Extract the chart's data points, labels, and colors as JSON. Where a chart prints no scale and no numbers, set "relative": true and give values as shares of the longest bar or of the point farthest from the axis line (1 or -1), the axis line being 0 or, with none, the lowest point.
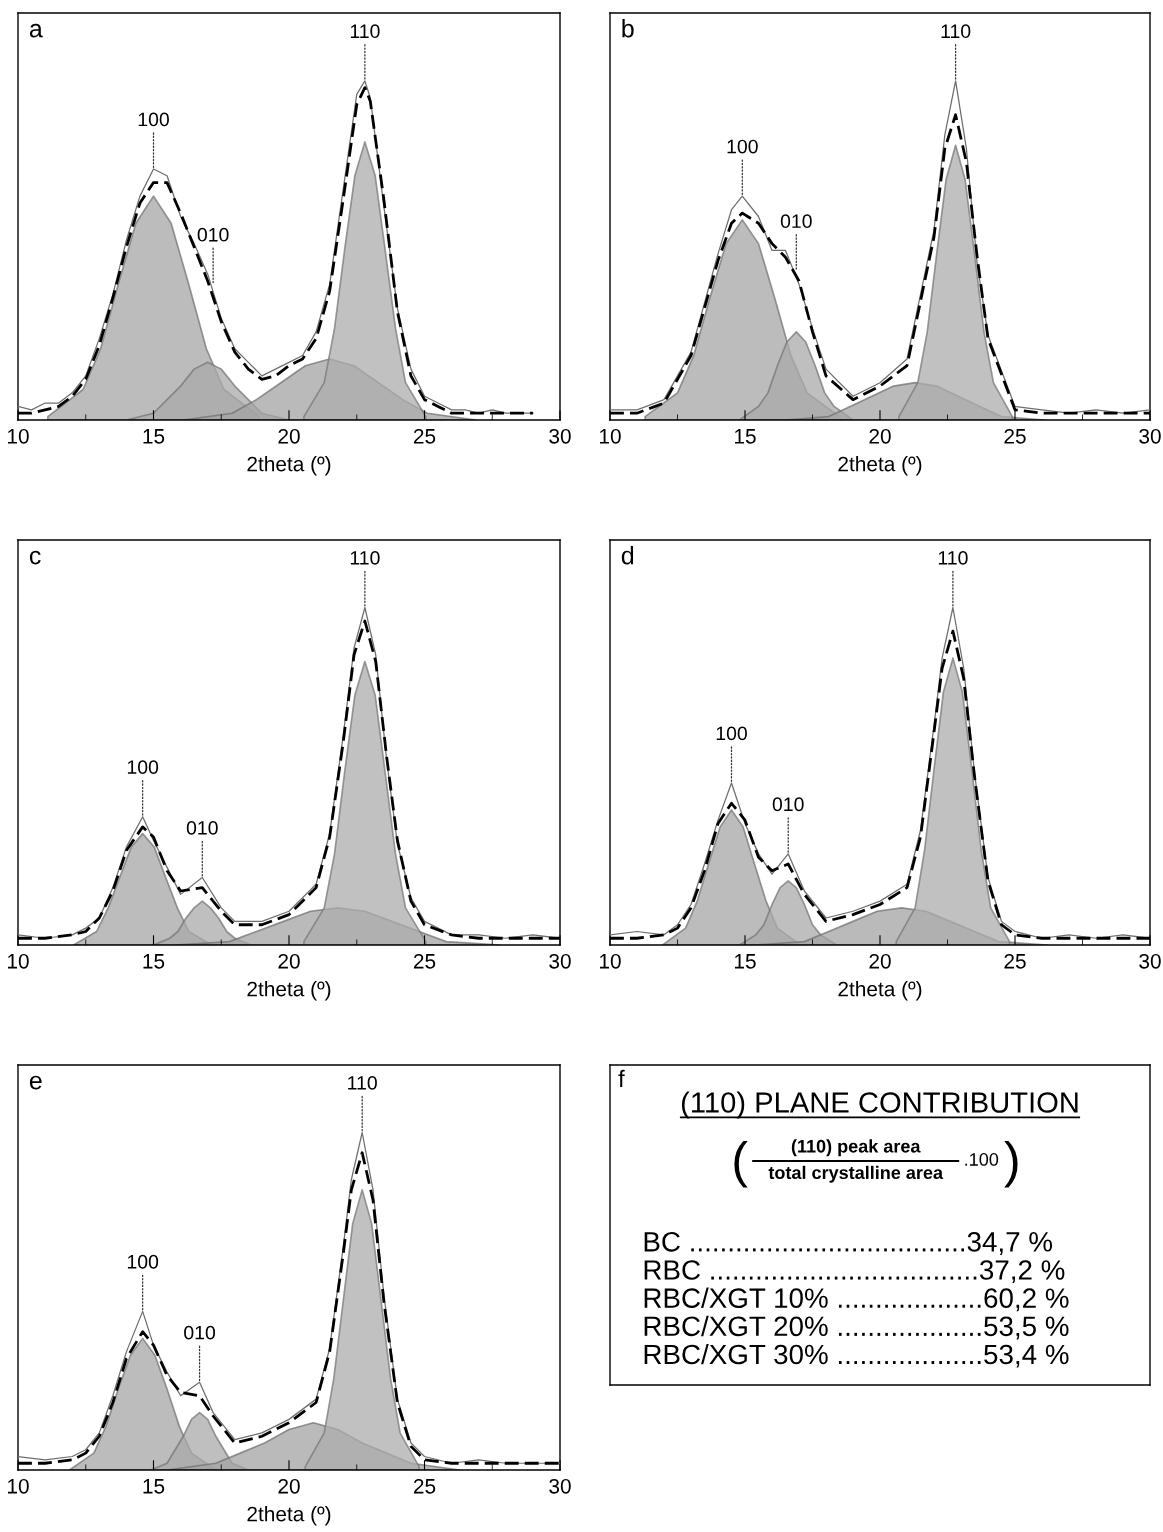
{
  "chart_data": [
    {
      "type": "line",
      "title": "a",
      "xlabel": "2theta (º)",
      "xlim": [
        10,
        30
      ],
      "xticks": [
        10,
        {
          "value": 12.5,
          "label": null
        },
        15,
        {
          "value": 17.5,
          "label": null
        },
        20,
        {
          "value": 22.5,
          "label": null
        },
        25,
        {
          "value": 27.5,
          "label": null
        },
        30
      ],
      "relative": true,
      "series": [
        {
          "type": "area",
          "color": "#a6a6a6",
          "x": [
            11.1,
            12.4,
            13.05,
            13.7,
            14.35,
            15,
            15.65,
            16.3,
            16.95,
            17.6,
            18.9
          ],
          "values": [
            0.01,
            0.09,
            0.21,
            0.4,
            0.58,
            0.66,
            0.58,
            0.4,
            0.21,
            0.09,
            0.01
          ]
        },
        {
          "type": "area",
          "color": "#a9a9a9",
          "x": [
            14,
            15,
            15.5,
            16,
            16.5,
            17,
            17.5,
            18,
            18.5,
            19,
            20
          ],
          "values": [
            0.0,
            0.02,
            0.06,
            0.1,
            0.15,
            0.17,
            0.15,
            0.1,
            0.06,
            0.02,
            0.0
          ]
        },
        {
          "type": "area",
          "color": "#a3a3a3",
          "x": [
            16.1,
            17.9,
            18.8,
            19.7,
            20.6,
            21.5,
            22.4,
            23.3,
            24.2,
            25.1,
            26.9
          ],
          "values": [
            0.0,
            0.02,
            0.06,
            0.11,
            0.16,
            0.18,
            0.16,
            0.11,
            0.06,
            0.02,
            0.0
          ]
        },
        {
          "type": "area",
          "color": "#acacac",
          "x": [
            20.55,
            21.3,
            21.68,
            22.05,
            22.43,
            22.8,
            23.18,
            23.55,
            23.93,
            24.3,
            25.05
          ],
          "values": [
            0.01,
            0.11,
            0.27,
            0.5,
            0.72,
            0.82,
            0.72,
            0.5,
            0.27,
            0.11,
            0.01
          ]
        },
        {
          "type": "line",
          "color": "#6e6e6e",
          "line_style": "solid",
          "x": [
            10,
            10.5,
            11,
            11.5,
            12,
            12.5,
            13,
            13.5,
            14,
            14.5,
            15,
            15.5,
            16,
            16.5,
            17,
            17.5,
            18,
            18.5,
            19,
            19.5,
            20,
            20.5,
            21,
            21.5,
            22,
            22.5,
            22.8,
            23,
            23.5,
            24,
            24.5,
            25,
            25.5,
            26,
            26.5,
            27,
            27.5,
            28,
            28.5,
            29
          ],
          "values": [
            0.04,
            0.03,
            0.05,
            0.05,
            0.08,
            0.13,
            0.24,
            0.37,
            0.53,
            0.66,
            0.74,
            0.72,
            0.6,
            0.52,
            0.43,
            0.3,
            0.21,
            0.17,
            0.13,
            0.15,
            0.17,
            0.19,
            0.26,
            0.4,
            0.68,
            0.96,
            1.0,
            0.95,
            0.63,
            0.33,
            0.15,
            0.07,
            0.05,
            0.03,
            0.03,
            0.02,
            0.03,
            0.02,
            0.02,
            0.02
          ]
        },
        {
          "type": "line",
          "color": "#000000",
          "line_style": "dashed",
          "x": [
            10,
            10.5,
            11,
            11.5,
            12,
            12.5,
            13,
            13.5,
            14,
            14.5,
            15,
            15.5,
            16,
            16.5,
            17,
            17.5,
            18,
            18.5,
            19,
            19.5,
            20,
            20.5,
            21,
            21.5,
            22,
            22.5,
            22.8,
            23,
            23.5,
            24,
            24.5,
            25,
            25.5,
            26,
            26.5,
            27,
            27.5,
            28,
            28.5,
            29
          ],
          "values": [
            0.02,
            0.02,
            0.03,
            0.04,
            0.07,
            0.12,
            0.22,
            0.36,
            0.51,
            0.64,
            0.7,
            0.7,
            0.61,
            0.51,
            0.41,
            0.29,
            0.2,
            0.15,
            0.12,
            0.13,
            0.16,
            0.18,
            0.24,
            0.38,
            0.65,
            0.93,
            0.98,
            0.94,
            0.65,
            0.32,
            0.13,
            0.06,
            0.04,
            0.02,
            0.02,
            0.02,
            0.02,
            0.02,
            0.02,
            0.02
          ]
        }
      ],
      "annotations": [
        {
          "text": "100",
          "x": 15,
          "y": 0.74
        },
        {
          "text": "010",
          "x": 17.2,
          "y": 0.4
        },
        {
          "text": "110",
          "x": 22.8,
          "y": 1.0
        }
      ]
    },
    {
      "type": "line",
      "title": "b",
      "xlabel": "2theta (º)",
      "xlim": [
        10,
        30
      ],
      "xticks": [
        10,
        {
          "value": 12.5,
          "label": null
        },
        15,
        {
          "value": 17.5,
          "label": null
        },
        20,
        {
          "value": 22.5,
          "label": null
        },
        25,
        {
          "value": 27.5,
          "label": null
        },
        30
      ],
      "relative": true,
      "series": [
        {
          "type": "area",
          "color": "#a6a6a6",
          "x": [
            11.3,
            12.5,
            13.1,
            13.7,
            14.3,
            14.9,
            15.5,
            16.1,
            16.7,
            17.3,
            18.5
          ],
          "values": [
            0.01,
            0.08,
            0.19,
            0.36,
            0.52,
            0.59,
            0.52,
            0.36,
            0.19,
            0.08,
            0.01
          ]
        },
        {
          "type": "area",
          "color": "#a9a9a9",
          "x": [
            14.8,
            15.5,
            15.85,
            16.2,
            16.55,
            16.9,
            17.25,
            17.6,
            17.95,
            18.3,
            19.0
          ],
          "values": [
            0.0,
            0.04,
            0.08,
            0.16,
            0.23,
            0.26,
            0.23,
            0.16,
            0.08,
            0.04,
            0.0
          ]
        },
        {
          "type": "area",
          "color": "#a3a3a3",
          "x": [
            16.5,
            18.1,
            18.9,
            19.7,
            20.5,
            21.3,
            22.1,
            22.9,
            23.7,
            24.5,
            26.1
          ],
          "values": [
            0.0,
            0.01,
            0.04,
            0.07,
            0.1,
            0.11,
            0.1,
            0.07,
            0.04,
            0.01,
            0.0
          ]
        },
        {
          "type": "area",
          "color": "#acacac",
          "x": [
            20.7,
            21.4,
            21.75,
            22.1,
            22.45,
            22.8,
            23.15,
            23.5,
            23.85,
            24.2,
            24.9
          ],
          "values": [
            0.01,
            0.11,
            0.26,
            0.49,
            0.71,
            0.81,
            0.71,
            0.49,
            0.26,
            0.11,
            0.01
          ]
        },
        {
          "type": "line",
          "color": "#6e6e6e",
          "line_style": "solid",
          "x": [
            10,
            11,
            12,
            13,
            14,
            14.5,
            14.9,
            15.5,
            16,
            16.5,
            17,
            17.5,
            18,
            19,
            20,
            21,
            22,
            22.4,
            22.8,
            23.2,
            23.6,
            24,
            25,
            26,
            27,
            28,
            29,
            30
          ],
          "values": [
            0.03,
            0.03,
            0.06,
            0.2,
            0.49,
            0.62,
            0.66,
            0.6,
            0.5,
            0.5,
            0.4,
            0.27,
            0.15,
            0.07,
            0.11,
            0.18,
            0.56,
            0.84,
            1.0,
            0.8,
            0.46,
            0.25,
            0.04,
            0.03,
            0.02,
            0.03,
            0.02,
            0.03
          ]
        },
        {
          "type": "line",
          "color": "#000000",
          "line_style": "dashed",
          "x": [
            10,
            11,
            12,
            13,
            14,
            14.5,
            14.9,
            15.5,
            16,
            16.5,
            17,
            17.5,
            18,
            19,
            20,
            21,
            22,
            22.4,
            22.8,
            23.2,
            23.6,
            24,
            25,
            26,
            27,
            28,
            29,
            30
          ],
          "values": [
            0.02,
            0.02,
            0.05,
            0.19,
            0.47,
            0.58,
            0.61,
            0.58,
            0.52,
            0.48,
            0.41,
            0.26,
            0.13,
            0.06,
            0.1,
            0.16,
            0.54,
            0.8,
            0.9,
            0.76,
            0.48,
            0.24,
            0.03,
            0.02,
            0.02,
            0.02,
            0.02,
            0.02
          ]
        }
      ],
      "annotations": [
        {
          "text": "100",
          "x": 14.9,
          "y": 0.66
        },
        {
          "text": "010",
          "x": 16.9,
          "y": 0.44
        },
        {
          "text": "110",
          "x": 22.8,
          "y": 1.0
        }
      ]
    },
    {
      "type": "line",
      "title": "c",
      "xlabel": "2theta (º)",
      "xlim": [
        10,
        30
      ],
      "xticks": [
        10,
        {
          "value": 12.5,
          "label": null
        },
        15,
        {
          "value": 17.5,
          "label": null
        },
        20,
        {
          "value": 22.5,
          "label": null
        },
        25,
        {
          "value": 27.5,
          "label": null
        },
        30
      ],
      "relative": true,
      "series": [
        {
          "type": "area",
          "color": "#a6a6a6",
          "x": [
            12.05,
            12.9,
            13.33,
            13.75,
            14.18,
            14.6,
            15.03,
            15.45,
            15.88,
            16.3,
            17.15
          ],
          "values": [
            0.0,
            0.04,
            0.11,
            0.2,
            0.29,
            0.33,
            0.29,
            0.2,
            0.11,
            0.04,
            0.0
          ]
        },
        {
          "type": "area",
          "color": "#a9a9a9",
          "x": [
            15.0,
            15.6,
            15.9,
            16.2,
            16.5,
            16.8,
            17.1,
            17.4,
            17.7,
            18.0,
            18.6
          ],
          "values": [
            0.0,
            0.02,
            0.04,
            0.08,
            0.11,
            0.13,
            0.11,
            0.08,
            0.04,
            0.02,
            0.0
          ]
        },
        {
          "type": "area",
          "color": "#a3a3a3",
          "x": [
            15.8,
            17.8,
            18.8,
            19.8,
            20.8,
            21.8,
            22.8,
            23.8,
            24.8,
            25.8,
            27.8
          ],
          "values": [
            0.0,
            0.01,
            0.04,
            0.07,
            0.1,
            0.11,
            0.1,
            0.07,
            0.04,
            0.01,
            0.0
          ]
        },
        {
          "type": "area",
          "color": "#acacac",
          "x": [
            20.55,
            21.3,
            21.68,
            22.05,
            22.43,
            22.8,
            23.18,
            23.55,
            23.93,
            24.3,
            25.05
          ],
          "values": [
            0.01,
            0.11,
            0.27,
            0.51,
            0.74,
            0.84,
            0.74,
            0.51,
            0.27,
            0.11,
            0.01
          ]
        },
        {
          "type": "line",
          "color": "#6e6e6e",
          "line_style": "solid",
          "x": [
            10,
            11,
            12,
            12.5,
            13,
            13.5,
            14,
            14.6,
            15,
            15.5,
            16,
            16.8,
            17.5,
            18,
            19,
            20,
            21,
            21.5,
            22,
            22.4,
            22.8,
            23.2,
            23.6,
            24,
            24.5,
            25,
            26,
            27,
            28,
            29,
            30
          ],
          "values": [
            0.03,
            0.02,
            0.03,
            0.05,
            0.08,
            0.17,
            0.29,
            0.38,
            0.31,
            0.23,
            0.15,
            0.2,
            0.11,
            0.07,
            0.07,
            0.1,
            0.18,
            0.33,
            0.62,
            0.88,
            1.0,
            0.86,
            0.55,
            0.3,
            0.14,
            0.07,
            0.03,
            0.03,
            0.02,
            0.03,
            0.02
          ]
        },
        {
          "type": "line",
          "color": "#000000",
          "line_style": "dashed",
          "x": [
            10,
            11,
            12,
            12.5,
            13,
            13.5,
            14,
            14.6,
            15,
            15.5,
            16,
            16.8,
            17.5,
            18,
            19,
            20,
            21,
            21.5,
            22,
            22.4,
            22.8,
            23.2,
            23.6,
            24,
            24.5,
            25,
            26,
            27,
            28,
            29,
            30
          ],
          "values": [
            0.02,
            0.02,
            0.03,
            0.04,
            0.08,
            0.16,
            0.28,
            0.35,
            0.32,
            0.22,
            0.16,
            0.17,
            0.1,
            0.06,
            0.06,
            0.09,
            0.17,
            0.32,
            0.6,
            0.86,
            0.96,
            0.84,
            0.56,
            0.31,
            0.13,
            0.06,
            0.03,
            0.02,
            0.02,
            0.02,
            0.02
          ]
        }
      ],
      "annotations": [
        {
          "text": "100",
          "x": 14.6,
          "y": 0.38
        },
        {
          "text": "010",
          "x": 16.8,
          "y": 0.2
        },
        {
          "text": "110",
          "x": 22.8,
          "y": 1.0
        }
      ]
    },
    {
      "type": "line",
      "title": "d",
      "xlabel": "2theta (º)",
      "xlim": [
        10,
        30
      ],
      "xticks": [
        10,
        {
          "value": 12.5,
          "label": null
        },
        15,
        {
          "value": 17.5,
          "label": null
        },
        20,
        {
          "value": 22.5,
          "label": null
        },
        25,
        {
          "value": 27.5,
          "label": null
        },
        30
      ],
      "relative": true,
      "series": [
        {
          "type": "area",
          "color": "#a6a6a6",
          "x": [
            11.95,
            12.8,
            13.23,
            13.65,
            14.08,
            14.5,
            14.93,
            15.35,
            15.78,
            16.2,
            17.05
          ],
          "values": [
            0.0,
            0.05,
            0.13,
            0.24,
            0.35,
            0.4,
            0.35,
            0.24,
            0.13,
            0.05,
            0.0
          ]
        },
        {
          "type": "area",
          "color": "#a9a9a9",
          "x": [
            14.8,
            15.4,
            15.7,
            16.0,
            16.3,
            16.6,
            16.9,
            17.2,
            17.5,
            17.8,
            18.4
          ],
          "values": [
            0.0,
            0.03,
            0.06,
            0.12,
            0.17,
            0.19,
            0.17,
            0.12,
            0.06,
            0.03,
            0.0
          ]
        },
        {
          "type": "area",
          "color": "#a3a3a3",
          "x": [
            15.4,
            17.2,
            18.1,
            19.0,
            19.9,
            20.8,
            21.7,
            22.6,
            23.5,
            24.4,
            26.2
          ],
          "values": [
            0.0,
            0.01,
            0.04,
            0.07,
            0.1,
            0.11,
            0.1,
            0.07,
            0.04,
            0.01,
            0.0
          ]
        },
        {
          "type": "area",
          "color": "#acacac",
          "x": [
            20.6,
            21.3,
            21.65,
            22.0,
            22.35,
            22.7,
            23.05,
            23.4,
            23.75,
            24.1,
            24.8
          ],
          "values": [
            0.01,
            0.11,
            0.28,
            0.52,
            0.75,
            0.85,
            0.75,
            0.52,
            0.28,
            0.11,
            0.01
          ]
        },
        {
          "type": "line",
          "color": "#6e6e6e",
          "line_style": "solid",
          "x": [
            10,
            11,
            12,
            12.5,
            13,
            13.5,
            14,
            14.5,
            15,
            15.5,
            16,
            16.6,
            17.2,
            18,
            19,
            20,
            21,
            21.5,
            22,
            22.3,
            22.7,
            23.1,
            23.5,
            24,
            24.5,
            25,
            26,
            27,
            28,
            29,
            30
          ],
          "values": [
            0.03,
            0.04,
            0.03,
            0.06,
            0.12,
            0.24,
            0.37,
            0.48,
            0.36,
            0.27,
            0.21,
            0.27,
            0.16,
            0.08,
            0.1,
            0.13,
            0.18,
            0.34,
            0.65,
            0.85,
            1.0,
            0.82,
            0.51,
            0.2,
            0.07,
            0.04,
            0.02,
            0.03,
            0.02,
            0.03,
            0.02
          ]
        },
        {
          "type": "line",
          "color": "#000000",
          "line_style": "dashed",
          "x": [
            10,
            11,
            12,
            12.5,
            13,
            13.5,
            14,
            14.5,
            15,
            15.5,
            16,
            16.6,
            17.2,
            18,
            19,
            20,
            21,
            21.5,
            22,
            22.3,
            22.7,
            23.1,
            23.5,
            24,
            24.5,
            25,
            26,
            27,
            28,
            29,
            30
          ],
          "values": [
            0.02,
            0.02,
            0.03,
            0.05,
            0.11,
            0.22,
            0.36,
            0.42,
            0.37,
            0.26,
            0.22,
            0.24,
            0.15,
            0.07,
            0.09,
            0.12,
            0.17,
            0.32,
            0.63,
            0.82,
            0.93,
            0.79,
            0.5,
            0.19,
            0.06,
            0.03,
            0.02,
            0.02,
            0.02,
            0.02,
            0.02
          ]
        }
      ],
      "annotations": [
        {
          "text": "100",
          "x": 14.5,
          "y": 0.48
        },
        {
          "text": "010",
          "x": 16.6,
          "y": 0.27
        },
        {
          "text": "110",
          "x": 22.7,
          "y": 1.0
        }
      ]
    },
    {
      "type": "line",
      "title": "e",
      "xlabel": "2theta (º)",
      "xlim": [
        10,
        30
      ],
      "xticks": [
        10,
        {
          "value": 12.5,
          "label": null
        },
        15,
        {
          "value": 17.5,
          "label": null
        },
        20,
        {
          "value": 22.5,
          "label": null
        },
        25,
        {
          "value": 27.5,
          "label": null
        },
        30
      ],
      "relative": true,
      "series": [
        {
          "type": "area",
          "color": "#a6a6a6",
          "x": [
            11.9,
            12.8,
            13.25,
            13.7,
            14.15,
            14.6,
            15.05,
            15.5,
            15.95,
            16.4,
            17.3
          ],
          "values": [
            0.0,
            0.05,
            0.13,
            0.24,
            0.34,
            0.39,
            0.34,
            0.24,
            0.13,
            0.05,
            0.0
          ]
        },
        {
          "type": "area",
          "color": "#a9a9a9",
          "x": [
            14.9,
            15.5,
            15.8,
            16.1,
            16.4,
            16.7,
            17.0,
            17.3,
            17.6,
            17.9,
            18.5
          ],
          "values": [
            0.0,
            0.02,
            0.06,
            0.1,
            0.15,
            0.17,
            0.15,
            0.1,
            0.06,
            0.02,
            0.0
          ]
        },
        {
          "type": "area",
          "color": "#a3a3a3",
          "x": [
            15.5,
            17.3,
            18.2,
            19.1,
            20.0,
            20.9,
            21.8,
            22.7,
            23.6,
            24.5,
            26.3
          ],
          "values": [
            0.0,
            0.02,
            0.05,
            0.08,
            0.12,
            0.14,
            0.12,
            0.08,
            0.05,
            0.02,
            0.0
          ]
        },
        {
          "type": "area",
          "color": "#acacac",
          "x": [
            20.6,
            21.3,
            21.65,
            22.0,
            22.35,
            22.7,
            23.05,
            23.4,
            23.75,
            24.1,
            24.8
          ],
          "values": [
            0.01,
            0.11,
            0.27,
            0.5,
            0.73,
            0.83,
            0.73,
            0.5,
            0.27,
            0.11,
            0.01
          ]
        },
        {
          "type": "line",
          "color": "#6e6e6e",
          "line_style": "solid",
          "x": [
            10,
            11,
            12,
            12.5,
            13,
            13.5,
            14,
            14.6,
            15,
            15.5,
            16,
            16.7,
            17.2,
            18,
            19,
            20,
            21,
            21.5,
            22,
            22.3,
            22.7,
            23.1,
            23.5,
            24,
            24.5,
            25,
            26,
            27,
            28,
            29,
            30
          ],
          "values": [
            0.04,
            0.03,
            0.04,
            0.06,
            0.11,
            0.22,
            0.35,
            0.47,
            0.37,
            0.29,
            0.22,
            0.26,
            0.17,
            0.09,
            0.11,
            0.15,
            0.21,
            0.36,
            0.66,
            0.86,
            1.0,
            0.83,
            0.52,
            0.21,
            0.08,
            0.04,
            0.02,
            0.03,
            0.02,
            0.02,
            0.02
          ]
        },
        {
          "type": "line",
          "color": "#000000",
          "line_style": "dashed",
          "x": [
            10,
            11,
            12,
            12.5,
            13,
            13.5,
            14,
            14.6,
            15,
            15.5,
            16,
            16.7,
            17.2,
            18,
            19,
            20,
            21,
            21.5,
            22,
            22.3,
            22.7,
            23.1,
            23.5,
            24,
            24.5,
            25,
            26,
            27,
            28,
            29,
            30
          ],
          "values": [
            0.02,
            0.02,
            0.03,
            0.05,
            0.1,
            0.2,
            0.33,
            0.41,
            0.37,
            0.28,
            0.23,
            0.22,
            0.16,
            0.08,
            0.1,
            0.14,
            0.2,
            0.35,
            0.64,
            0.83,
            0.94,
            0.8,
            0.5,
            0.2,
            0.07,
            0.03,
            0.02,
            0.02,
            0.02,
            0.02,
            0.02
          ]
        }
      ],
      "annotations": [
        {
          "text": "100",
          "x": 14.6,
          "y": 0.47
        },
        {
          "text": "010",
          "x": 16.7,
          "y": 0.26
        },
        {
          "text": "110",
          "x": 22.7,
          "y": 1.0
        }
      ]
    },
    {
      "type": "other",
      "title": "f",
      "subtitle": "(110) PLANE CONTRIBUTION",
      "annotations": [
        "(",
        "(110) peak area",
        "total crystalline area",
        ".100",
        ")",
        "BC ....................................34,7 %",
        "RBC ...................................37,2 %",
        "RBC/XGT 10% ...................60,2 %",
        "RBC/XGT 20% ...................53,5 %",
        "RBC/XGT 30% ...................53,4 %"
      ]
    }
  ]
}
